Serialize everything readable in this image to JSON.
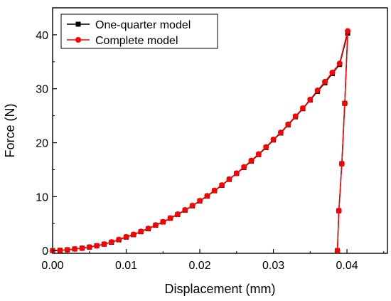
{
  "chart_data": {
    "type": "line",
    "xlabel": "Displacement (mm)",
    "ylabel": "Force (N)",
    "xlim": [
      0,
      0.0455
    ],
    "ylim": [
      -0.5,
      45
    ],
    "xticks": [
      "0.00",
      "0.01",
      "0.02",
      "0.03",
      "0.04"
    ],
    "yticks": [
      "0",
      "10",
      "20",
      "30",
      "40"
    ],
    "grid": false,
    "legend_position": "top-left",
    "series": [
      {
        "name": "One-quarter model",
        "color": "#000000",
        "marker": "square",
        "x": [
          0.0,
          0.001,
          0.002,
          0.003,
          0.004,
          0.005,
          0.006,
          0.007,
          0.008,
          0.009,
          0.01,
          0.011,
          0.012,
          0.013,
          0.014,
          0.015,
          0.016,
          0.017,
          0.018,
          0.019,
          0.02,
          0.021,
          0.022,
          0.023,
          0.024,
          0.025,
          0.026,
          0.027,
          0.028,
          0.029,
          0.03,
          0.031,
          0.032,
          0.033,
          0.034,
          0.035,
          0.036,
          0.037,
          0.038,
          0.039,
          0.0401,
          0.0397,
          0.0393,
          0.0389,
          0.0387
        ],
        "y": [
          0.0,
          0.05,
          0.15,
          0.3,
          0.45,
          0.65,
          0.9,
          1.2,
          1.55,
          2.0,
          2.5,
          2.95,
          3.5,
          4.05,
          4.7,
          5.3,
          6.0,
          6.7,
          7.5,
          8.3,
          9.2,
          10.1,
          11.1,
          12.1,
          13.2,
          14.3,
          15.4,
          16.6,
          17.8,
          19.1,
          20.5,
          21.8,
          23.3,
          24.8,
          26.3,
          27.9,
          29.5,
          31.1,
          32.8,
          34.5,
          40.3,
          27.3,
          16.1,
          7.4,
          0.0
        ]
      },
      {
        "name": "Complete model",
        "color": "#ff0000",
        "marker": "circle",
        "x": [
          0.0,
          0.001,
          0.002,
          0.003,
          0.004,
          0.005,
          0.006,
          0.007,
          0.008,
          0.009,
          0.01,
          0.011,
          0.012,
          0.013,
          0.014,
          0.015,
          0.016,
          0.017,
          0.018,
          0.019,
          0.02,
          0.021,
          0.022,
          0.023,
          0.024,
          0.025,
          0.026,
          0.027,
          0.028,
          0.029,
          0.03,
          0.031,
          0.032,
          0.033,
          0.034,
          0.035,
          0.036,
          0.037,
          0.038,
          0.039,
          0.0401,
          0.0397,
          0.0393,
          0.0389,
          0.0387
        ],
        "y": [
          0.0,
          0.05,
          0.15,
          0.3,
          0.45,
          0.65,
          0.9,
          1.2,
          1.6,
          2.05,
          2.55,
          3.0,
          3.55,
          4.1,
          4.75,
          5.35,
          6.05,
          6.75,
          7.55,
          8.35,
          9.25,
          10.15,
          11.15,
          12.15,
          13.25,
          14.35,
          15.5,
          16.7,
          17.9,
          19.2,
          20.6,
          21.9,
          23.4,
          24.9,
          26.4,
          28.0,
          29.7,
          31.3,
          33.0,
          34.7,
          40.7,
          27.3,
          16.1,
          7.4,
          0.0
        ]
      }
    ]
  }
}
